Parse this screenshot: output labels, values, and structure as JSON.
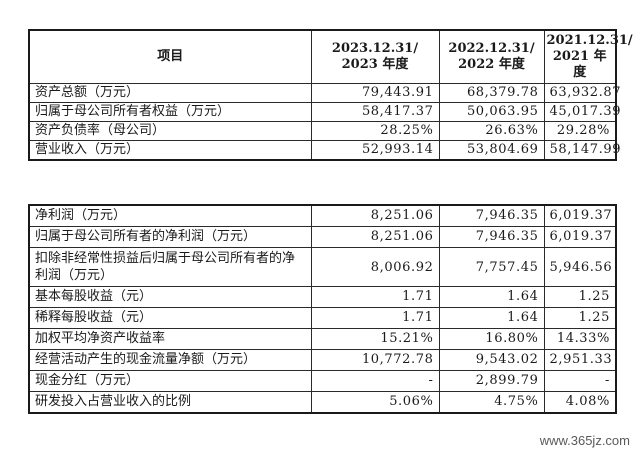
{
  "table1": {
    "headers": [
      "项目",
      "2023.12.31/ 2023 年度",
      "2022.12.31/ 2022 年度",
      "2021.12.31/ 2021 年度"
    ],
    "rows": [
      [
        "资产总额（万元）",
        "79,443.91",
        "68,379.78",
        "63,932.87"
      ],
      [
        "归属于母公司所有者权益（万元）",
        "58,417.37",
        "50,063.95",
        "45,017.39"
      ],
      [
        "资产负债率（母公司）",
        "28.25%",
        "26.63%",
        "29.28%"
      ],
      [
        "营业收入（万元）",
        "52,993.14",
        "53,804.69",
        "58,147.99"
      ]
    ]
  },
  "table2": {
    "rows": [
      [
        "净利润（万元）",
        "8,251.06",
        "7,946.35",
        "6,019.37"
      ],
      [
        "归属于母公司所有者的净利润（万元）",
        "8,251.06",
        "7,946.35",
        "6,019.37"
      ],
      [
        "扣除非经常性损益后归属于母公司所有者的净利润（万元）",
        "8,006.92",
        "7,757.45",
        "5,946.56"
      ],
      [
        "基本每股收益（元）",
        "1.71",
        "1.64",
        "1.25"
      ],
      [
        "稀释每股收益（元）",
        "1.71",
        "1.64",
        "1.25"
      ],
      [
        "加权平均净资产收益率",
        "15.21%",
        "16.80%",
        "14.33%"
      ],
      [
        "经营活动产生的现金流量净额（万元）",
        "10,772.78",
        "9,543.02",
        "2,951.33"
      ],
      [
        "现金分红（万元）",
        "-",
        "2,899.79",
        "-"
      ],
      [
        "研发投入占营业收入的比例",
        "5.06%",
        "4.75%",
        "4.08%"
      ]
    ]
  },
  "watermark": "www.365jz.com"
}
